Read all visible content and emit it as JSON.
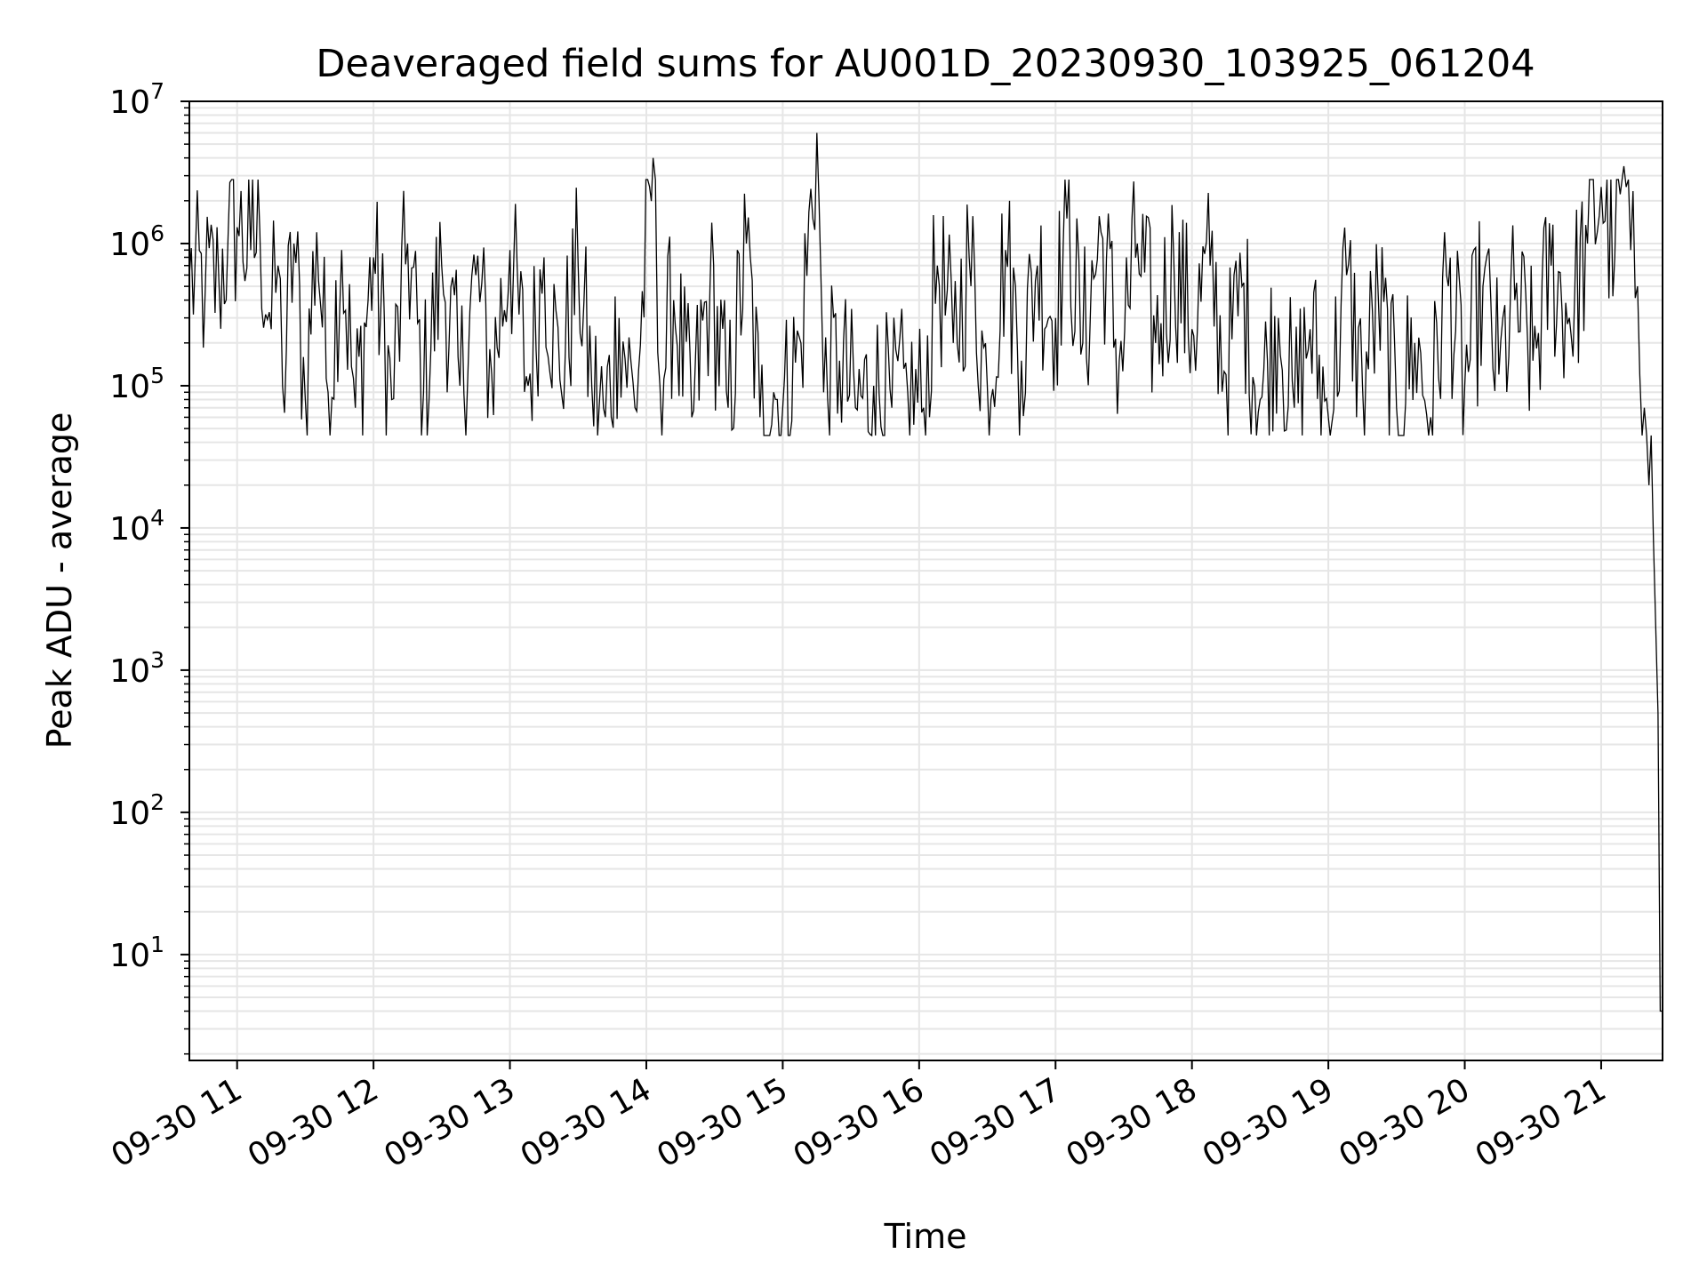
{
  "chart_data": {
    "type": "line",
    "title": "Deaveraged field sums for AU001D_20230930_103925_061204",
    "xlabel": "Time",
    "ylabel": "Peak ADU - average",
    "y_scale": "log",
    "ylim": [
      1.8,
      10000000
    ],
    "xlim": [
      "2023-09-30 10:39",
      "2023-09-30 21:27"
    ],
    "grid": true,
    "x_ticks": [
      {
        "time": "2023-09-30 11:00",
        "label": "09-30 11"
      },
      {
        "time": "2023-09-30 12:00",
        "label": "09-30 12"
      },
      {
        "time": "2023-09-30 13:00",
        "label": "09-30 13"
      },
      {
        "time": "2023-09-30 14:00",
        "label": "09-30 14"
      },
      {
        "time": "2023-09-30 15:00",
        "label": "09-30 15"
      },
      {
        "time": "2023-09-30 16:00",
        "label": "09-30 16"
      },
      {
        "time": "2023-09-30 17:00",
        "label": "09-30 17"
      },
      {
        "time": "2023-09-30 18:00",
        "label": "09-30 18"
      },
      {
        "time": "2023-09-30 19:00",
        "label": "09-30 19"
      },
      {
        "time": "2023-09-30 20:00",
        "label": "09-30 20"
      },
      {
        "time": "2023-09-30 21:00",
        "label": "09-30 21"
      }
    ],
    "y_ticks": [
      {
        "value": 10,
        "base": "10",
        "exp": "1"
      },
      {
        "value": 100,
        "base": "10",
        "exp": "2"
      },
      {
        "value": 1000,
        "base": "10",
        "exp": "3"
      },
      {
        "value": 10000,
        "base": "10",
        "exp": "4"
      },
      {
        "value": 100000,
        "base": "10",
        "exp": "5"
      },
      {
        "value": 1000000,
        "base": "10",
        "exp": "6"
      },
      {
        "value": 10000000,
        "base": "10",
        "exp": "7"
      }
    ],
    "series": [
      {
        "color": "#000000",
        "points": [
          [
            "2023-09-30 10:39",
            600000
          ],
          [
            "2023-09-30 10:46",
            480000
          ],
          [
            "2023-09-30 10:52",
            550000
          ],
          [
            "2023-09-30 10:56",
            1100000
          ],
          [
            "2023-09-30 11:00",
            1300000
          ],
          [
            "2023-09-30 11:06",
            900000
          ],
          [
            "2023-09-30 11:10",
            1200000
          ],
          [
            "2023-09-30 11:15",
            250000
          ],
          [
            "2023-09-30 11:18",
            700000
          ],
          [
            "2023-09-30 11:20",
            100000
          ],
          [
            "2023-09-30 11:25",
            1000000
          ],
          [
            "2023-09-30 11:30",
            80000
          ],
          [
            "2023-09-30 11:35",
            1200000
          ],
          [
            "2023-09-30 11:40",
            90000
          ],
          [
            "2023-09-30 11:46",
            900000
          ],
          [
            "2023-09-30 11:52",
            70000
          ],
          [
            "2023-09-30 12:00",
            800000
          ],
          [
            "2023-09-30 12:08",
            80000
          ],
          [
            "2023-09-30 12:15",
            1000000
          ],
          [
            "2023-09-30 12:22",
            90000
          ],
          [
            "2023-09-30 12:30",
            700000
          ],
          [
            "2023-09-30 12:38",
            100000
          ],
          [
            "2023-09-30 12:45",
            600000
          ],
          [
            "2023-09-30 12:52",
            120000
          ],
          [
            "2023-09-30 13:00",
            900000
          ],
          [
            "2023-09-30 13:08",
            100000
          ],
          [
            "2023-09-30 13:15",
            800000
          ],
          [
            "2023-09-30 13:22",
            110000
          ],
          [
            "2023-09-30 13:30",
            700000
          ],
          [
            "2023-09-30 13:36",
            100000
          ],
          [
            "2023-09-30 13:42",
            60000
          ],
          [
            "2023-09-30 13:48",
            300000
          ],
          [
            "2023-09-30 13:55",
            70000
          ],
          [
            "2023-09-30 14:03",
            4000000
          ],
          [
            "2023-09-30 14:06",
            100000
          ],
          [
            "2023-09-30 14:12",
            400000
          ],
          [
            "2023-09-30 14:20",
            60000
          ],
          [
            "2023-09-30 14:28",
            500000
          ],
          [
            "2023-09-30 14:36",
            70000
          ],
          [
            "2023-09-30 14:44",
            1000000
          ],
          [
            "2023-09-30 14:50",
            60000
          ],
          [
            "2023-09-30 14:56",
            90000
          ],
          [
            "2023-09-30 15:00",
            70000
          ],
          [
            "2023-09-30 15:08",
            200000
          ],
          [
            "2023-09-30 15:15",
            6000000
          ],
          [
            "2023-09-30 15:18",
            90000
          ],
          [
            "2023-09-30 15:25",
            150000
          ],
          [
            "2023-09-30 15:32",
            70000
          ],
          [
            "2023-09-30 15:40",
            100000
          ],
          [
            "2023-09-30 15:48",
            70000
          ],
          [
            "2023-09-30 15:55",
            90000
          ],
          [
            "2023-09-30 16:02",
            70000
          ],
          [
            "2023-09-30 16:08",
            700000
          ],
          [
            "2023-09-30 16:15",
            200000
          ],
          [
            "2023-09-30 16:22",
            800000
          ],
          [
            "2023-09-30 16:30",
            100000
          ],
          [
            "2023-09-30 16:38",
            900000
          ],
          [
            "2023-09-30 16:45",
            150000
          ],
          [
            "2023-09-30 16:52",
            700000
          ],
          [
            "2023-09-30 17:00",
            300000
          ],
          [
            "2023-09-30 17:05",
            1500000
          ],
          [
            "2023-09-30 17:12",
            200000
          ],
          [
            "2023-09-30 17:20",
            1200000
          ],
          [
            "2023-09-30 17:28",
            150000
          ],
          [
            "2023-09-30 17:36",
            1000000
          ],
          [
            "2023-09-30 17:44",
            200000
          ],
          [
            "2023-09-30 17:52",
            800000
          ],
          [
            "2023-09-30 18:00",
            250000
          ],
          [
            "2023-09-30 18:08",
            700000
          ],
          [
            "2023-09-30 18:15",
            120000
          ],
          [
            "2023-09-30 18:22",
            500000
          ],
          [
            "2023-09-30 18:30",
            80000
          ],
          [
            "2023-09-30 18:38",
            300000
          ],
          [
            "2023-09-30 18:45",
            70000
          ],
          [
            "2023-09-30 18:52",
            250000
          ],
          [
            "2023-09-30 19:00",
            60000
          ],
          [
            "2023-09-30 19:08",
            600000
          ],
          [
            "2023-09-30 19:15",
            100000
          ],
          [
            "2023-09-30 19:22",
            400000
          ],
          [
            "2023-09-30 19:30",
            70000
          ],
          [
            "2023-09-30 19:38",
            200000
          ],
          [
            "2023-09-30 19:45",
            60000
          ],
          [
            "2023-09-30 19:52",
            600000
          ],
          [
            "2023-09-30 20:00",
            100000
          ],
          [
            "2023-09-30 20:08",
            500000
          ],
          [
            "2023-09-30 20:15",
            120000
          ],
          [
            "2023-09-30 20:22",
            400000
          ],
          [
            "2023-09-30 20:30",
            150000
          ],
          [
            "2023-09-30 20:38",
            700000
          ],
          [
            "2023-09-30 20:46",
            300000
          ],
          [
            "2023-09-30 20:54",
            1000000
          ],
          [
            "2023-09-30 21:00",
            2500000
          ],
          [
            "2023-09-30 21:06",
            800000
          ],
          [
            "2023-09-30 21:10",
            3500000
          ],
          [
            "2023-09-30 21:13",
            900000
          ],
          [
            "2023-09-30 21:16",
            500000
          ],
          [
            "2023-09-30 21:19",
            70000
          ],
          [
            "2023-09-30 21:21",
            20000
          ],
          [
            "2023-09-30 21:23",
            8000
          ],
          [
            "2023-09-30 21:25",
            500
          ],
          [
            "2023-09-30 21:26",
            4
          ],
          [
            "2023-09-30 21:27",
            4
          ]
        ]
      }
    ]
  }
}
